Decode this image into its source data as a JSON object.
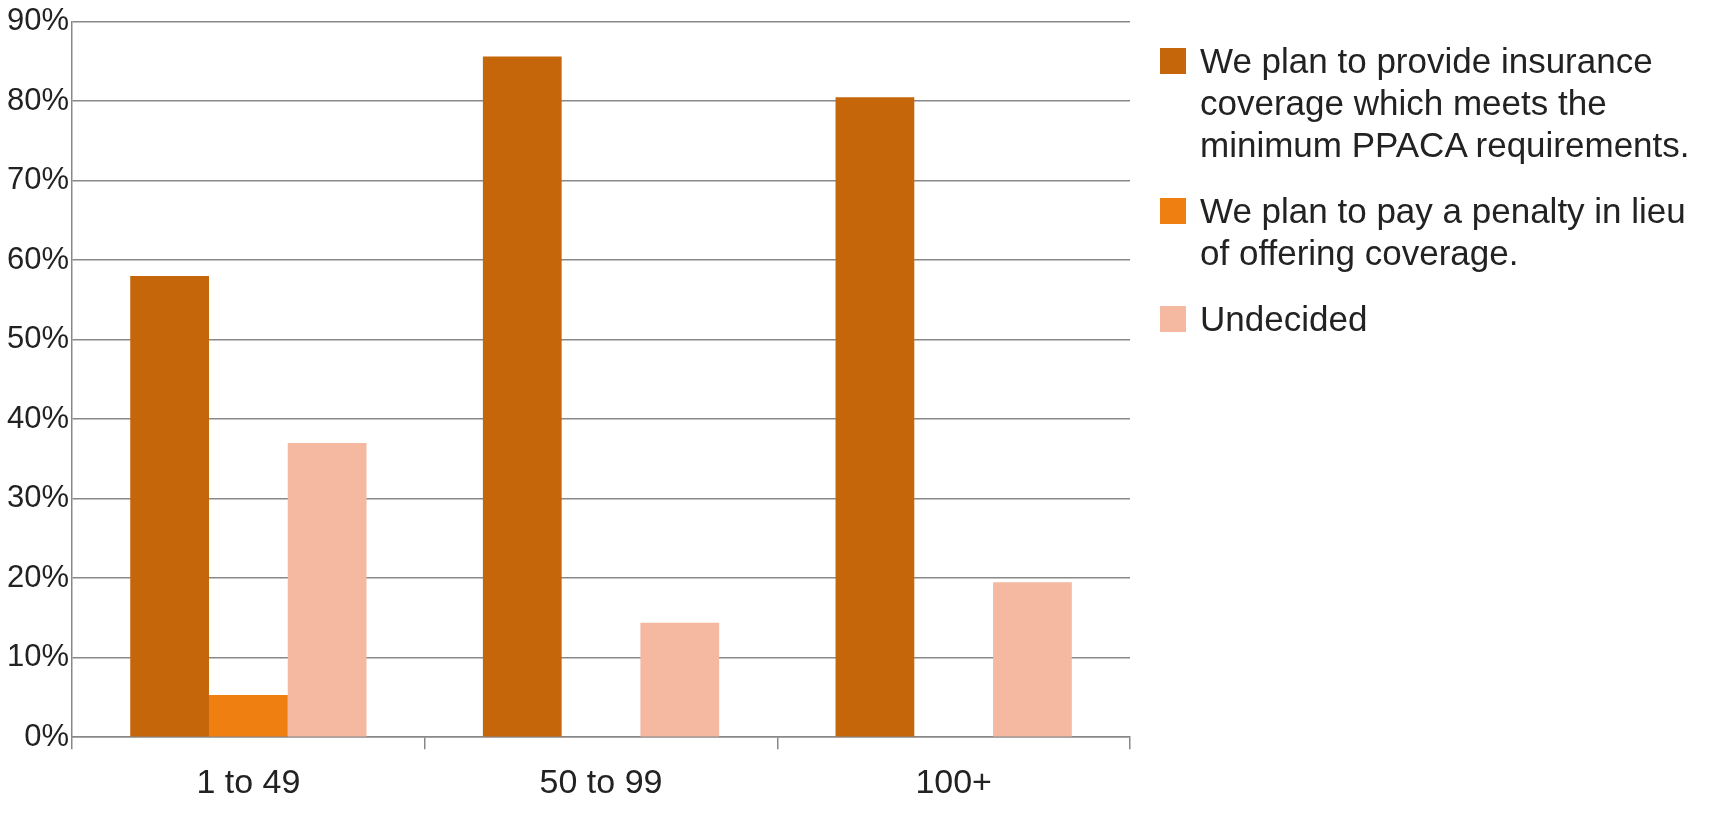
{
  "chart_data": {
    "type": "bar",
    "categories": [
      "1 to 49",
      "50 to 99",
      "100+"
    ],
    "series": [
      {
        "name": "We plan to provide insurance coverage which meets the minimum PPACA requirements.",
        "color": "#c5660a",
        "values": [
          58,
          85.6,
          80.5
        ]
      },
      {
        "name": "We plan to pay a penalty in lieu of offering coverage.",
        "color": "#ee7f10",
        "values": [
          5.3,
          0,
          0
        ]
      },
      {
        "name": "Undecided",
        "color": "#f4b9a0",
        "values": [
          37,
          14.4,
          19.5
        ]
      }
    ],
    "ylim": [
      0,
      90
    ],
    "yticks": [
      {
        "value": 0,
        "label": "0%"
      },
      {
        "value": 10,
        "label": "10%"
      },
      {
        "value": 20,
        "label": "20%"
      },
      {
        "value": 30,
        "label": "30%"
      },
      {
        "value": 40,
        "label": "40%"
      },
      {
        "value": 50,
        "label": "50%"
      },
      {
        "value": 60,
        "label": "60%"
      },
      {
        "value": 70,
        "label": "70%"
      },
      {
        "value": 80,
        "label": "80%"
      },
      {
        "value": 90,
        "label": "90%"
      }
    ],
    "grid": "y",
    "legend": "right"
  }
}
